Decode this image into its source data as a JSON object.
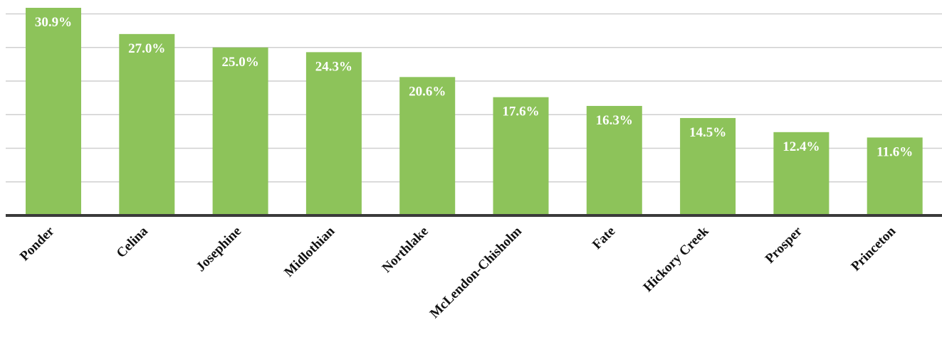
{
  "chart_data": {
    "type": "bar",
    "title": "",
    "xlabel": "",
    "ylabel": "",
    "categories": [
      "Ponder",
      "Celina",
      "Josephine",
      "Midlothian",
      "Northlake",
      "McLendon-Chisholm",
      "Fate",
      "Hickory Creek",
      "Prosper",
      "Princeton"
    ],
    "values": [
      30.9,
      27.0,
      25.0,
      24.3,
      20.6,
      17.6,
      16.3,
      14.5,
      12.4,
      11.6
    ],
    "value_labels": [
      "30.9%",
      "27.0%",
      "25.0%",
      "24.3%",
      "20.6%",
      "17.6%",
      "16.3%",
      "14.5%",
      "12.4%",
      "11.6%"
    ],
    "ylim": [
      0,
      30
    ],
    "y_gridlines": [
      5,
      10,
      15,
      20,
      25,
      30
    ],
    "grid": true,
    "legend": "none",
    "colors": {
      "bar": "#8dc35a",
      "label": "#ffffff",
      "axis": "#3a3a3a",
      "grid": "#cfcfcf"
    }
  }
}
